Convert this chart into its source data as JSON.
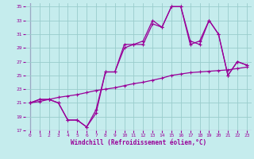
{
  "xlabel": "Windchill (Refroidissement éolien,°C)",
  "xlim": [
    -0.5,
    23.5
  ],
  "ylim": [
    17,
    35.5
  ],
  "xticks": [
    0,
    1,
    2,
    3,
    4,
    5,
    6,
    7,
    8,
    9,
    10,
    11,
    12,
    13,
    14,
    15,
    16,
    17,
    18,
    19,
    20,
    21,
    22,
    23
  ],
  "yticks": [
    17,
    19,
    21,
    23,
    25,
    27,
    29,
    31,
    33,
    35
  ],
  "bg_color": "#c5eced",
  "line_color": "#990099",
  "grid_color": "#99cccc",
  "line1_y": [
    21,
    21.2,
    21.5,
    21.8,
    22.0,
    22.2,
    22.5,
    22.8,
    23.0,
    23.2,
    23.5,
    23.8,
    24.0,
    24.3,
    24.6,
    25.0,
    25.2,
    25.4,
    25.5,
    25.6,
    25.7,
    25.8,
    26.0,
    26.2
  ],
  "line2_y": [
    21,
    21.5,
    21.5,
    21.0,
    18.5,
    18.5,
    17.5,
    19.5,
    25.5,
    25.5,
    29.0,
    29.5,
    29.5,
    32.5,
    32.0,
    35.0,
    35.0,
    30.0,
    29.5,
    33.0,
    31.0,
    25.0,
    27.0,
    26.5
  ],
  "line3_y": [
    21,
    21.5,
    21.5,
    21.0,
    18.5,
    18.5,
    17.5,
    20.0,
    25.5,
    25.5,
    29.5,
    29.5,
    30.0,
    33.0,
    32.0,
    35.0,
    35.0,
    29.5,
    30.0,
    33.0,
    31.0,
    25.0,
    27.0,
    26.5
  ]
}
